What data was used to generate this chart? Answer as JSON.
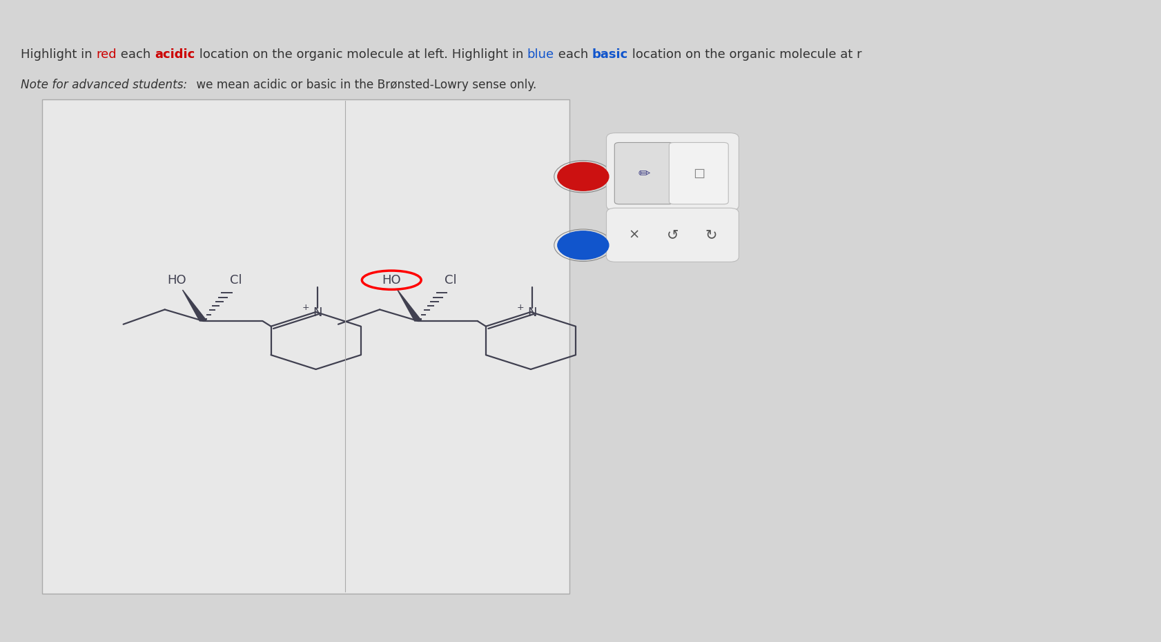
{
  "bg_color": "#d5d5d5",
  "box_facecolor": "#e8e8e8",
  "box_edgecolor": "#aaaaaa",
  "text_color": "#333333",
  "red_color": "#cc0000",
  "blue_color": "#1155cc",
  "mol_color": "#404050",
  "line1_parts": [
    [
      "Highlight in ",
      "#333333",
      false
    ],
    [
      "red",
      "#cc0000",
      false
    ],
    [
      " each ",
      "#333333",
      false
    ],
    [
      "acidic",
      "#cc0000",
      true
    ],
    [
      " location on the organic molecule at left. Highlight in ",
      "#333333",
      false
    ],
    [
      "blue",
      "#1155cc",
      false
    ],
    [
      " each ",
      "#333333",
      false
    ],
    [
      "basic",
      "#1155cc",
      true
    ],
    [
      " location on the organic molecule at r",
      "#333333",
      false
    ]
  ],
  "note_italic": "Note for advanced students:",
  "note_normal": " we mean acidic or basic in the Brønsted-Lowry sense only.",
  "red_circle": [
    0.502,
    0.725,
    0.022
  ],
  "blue_circle": [
    0.502,
    0.618,
    0.022
  ]
}
